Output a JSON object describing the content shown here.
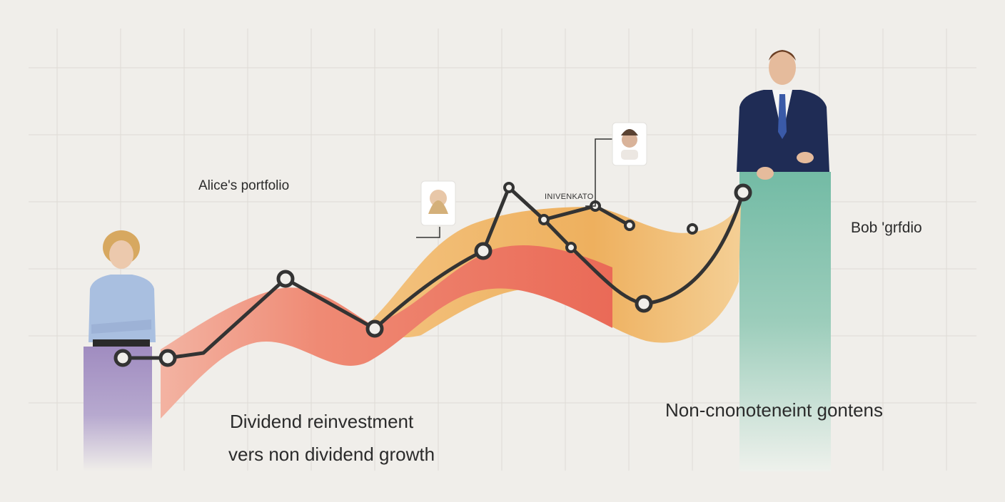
{
  "chart_data": {
    "type": "line",
    "labels": {
      "left_portfolio": "Alice's portfolio",
      "right_portfolio": "Bob 'grfdio",
      "caption_line1": "Dividend reinvestment",
      "caption_line2": "vers non dividend growth",
      "caption_right": "Non-cnonoteneint gontens",
      "tag": "INIVENKATO"
    },
    "series": [
      {
        "values": [
          0.3,
          0.3,
          0.33,
          0.47,
          0.37,
          0.43,
          0.52,
          0.72,
          0.6,
          0.63,
          0.55,
          0.42,
          0.48,
          0.66
        ]
      }
    ],
    "x": [
      0,
      1,
      2,
      3,
      4,
      5,
      6,
      7,
      8,
      9,
      10,
      11,
      12,
      13
    ],
    "bars": [
      {
        "name": "left",
        "value": 0.31,
        "color": "#a08cc0"
      },
      {
        "name": "right",
        "value": 0.79,
        "color": "#7dbfa8"
      }
    ],
    "colors": {
      "band_red": "#ee7a66",
      "band_orange": "#eeb05e",
      "line": "#333333",
      "grid": "#dedbd5"
    },
    "grid": true
  }
}
